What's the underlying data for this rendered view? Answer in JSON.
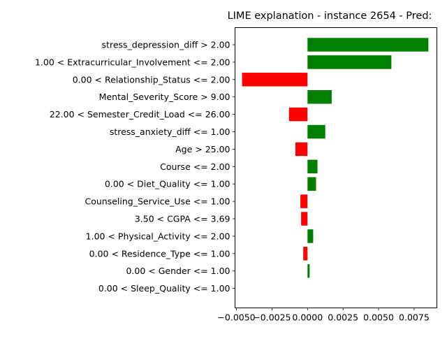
{
  "chart_data": {
    "type": "bar",
    "orientation": "horizontal",
    "title": "LIME explanation - instance 2654 - Pred:",
    "xlabel": "",
    "ylabel": "",
    "xlim": [
      -0.0051,
      0.0091
    ],
    "xticks": [
      {
        "value": -0.005,
        "label": "−0.0050"
      },
      {
        "value": -0.0025,
        "label": "−0.0025"
      },
      {
        "value": 0.0,
        "label": "0.0000"
      },
      {
        "value": 0.0025,
        "label": "0.0025"
      },
      {
        "value": 0.005,
        "label": "0.0050"
      },
      {
        "value": 0.0075,
        "label": "0.0075"
      }
    ],
    "grid": false,
    "legend": "none",
    "colors": {
      "positive": "#008000",
      "negative": "#ff0000"
    },
    "categories": [
      "stress_depression_diff > 2.00",
      "1.00 < Extracurricular_Involvement <= 2.00",
      "0.00 < Relationship_Status <= 2.00",
      "Mental_Severity_Score > 9.00",
      "22.00 < Semester_Credit_Load <= 26.00",
      "stress_anxiety_diff <= 1.00",
      "Age > 25.00",
      "Course <= 2.00",
      "0.00 < Diet_Quality <= 1.00",
      "Counseling_Service_Use <= 1.00",
      "3.50 < CGPA <= 3.69",
      "1.00 < Physical_Activity <= 2.00",
      "0.00 < Residence_Type <= 1.00",
      "0.00 < Gender <= 1.00",
      "0.00 < Sleep_Quality <= 1.00"
    ],
    "values": [
      0.0085,
      0.0059,
      -0.0046,
      0.0017,
      -0.0013,
      0.00125,
      -0.00085,
      0.0007,
      0.0006,
      -0.0005,
      -0.00045,
      0.0004,
      -0.0003,
      0.00015,
      0.0
    ]
  }
}
